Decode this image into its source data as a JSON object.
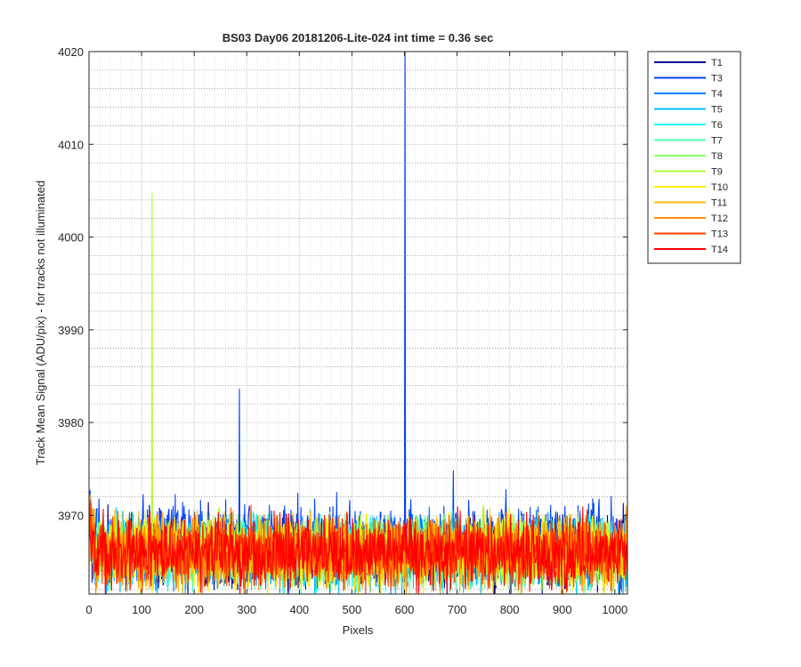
{
  "chart_data": {
    "type": "line",
    "title": "BS03 Day06 20181206-Lite-024 int time = 0.36 sec",
    "xlabel": "Pixels",
    "ylabel": "Track Mean Signal (ADU/pix) - for tracks not illuminated",
    "xlim": [
      0,
      1024
    ],
    "ylim": [
      3961.5,
      4020
    ],
    "xticks": [
      0,
      100,
      200,
      300,
      400,
      500,
      600,
      700,
      800,
      900,
      1000
    ],
    "yticks": [
      3970,
      3980,
      3990,
      4000,
      4010,
      4020
    ],
    "grid": true,
    "minor_grid": true,
    "legend_position": "outside-top-right",
    "series": [
      {
        "name": "T1",
        "color": "#00008f",
        "baseline": 3966.2,
        "noise": 3.2
      },
      {
        "name": "T3",
        "color": "#0040ff",
        "baseline": 3967.4,
        "noise": 3.2,
        "spikes": [
          {
            "x": 286,
            "y": 3983.6
          },
          {
            "x": 601,
            "y": 4020
          },
          {
            "x": 693,
            "y": 3974.8
          }
        ]
      },
      {
        "name": "T4",
        "color": "#0080ff",
        "baseline": 3966.0,
        "noise": 3.0
      },
      {
        "name": "T5",
        "color": "#00bfff",
        "baseline": 3965.8,
        "noise": 3.0
      },
      {
        "name": "T6",
        "color": "#10ffef",
        "baseline": 3966.0,
        "noise": 3.0
      },
      {
        "name": "T7",
        "color": "#50ffaf",
        "baseline": 3966.0,
        "noise": 3.0
      },
      {
        "name": "T8",
        "color": "#8fff70",
        "baseline": 3966.0,
        "noise": 3.0
      },
      {
        "name": "T9",
        "color": "#b0ff30",
        "baseline": 3966.2,
        "noise": 3.0,
        "spikes": [
          {
            "x": 120,
            "y": 4004.7
          }
        ]
      },
      {
        "name": "T10",
        "color": "#ffef00",
        "baseline": 3966.0,
        "noise": 3.0
      },
      {
        "name": "T11",
        "color": "#ffc000",
        "baseline": 3966.0,
        "noise": 3.0
      },
      {
        "name": "T12",
        "color": "#ff8f00",
        "baseline": 3966.0,
        "noise": 3.0
      },
      {
        "name": "T13",
        "color": "#ff4000",
        "baseline": 3966.0,
        "noise": 3.0
      },
      {
        "name": "T14",
        "color": "#ff0000",
        "baseline": 3966.0,
        "noise": 3.0
      }
    ]
  }
}
